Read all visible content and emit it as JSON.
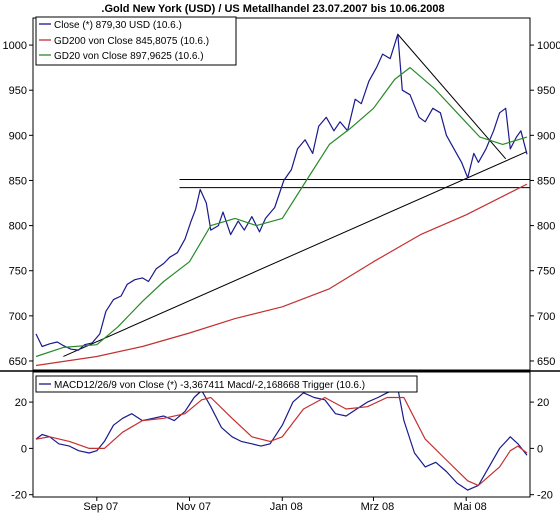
{
  "chart_data": [
    {
      "type": "line",
      "title": ".Gold New York (USD) / US Metallhandel 23.07.2007 bis 10.06.2008",
      "ylim": [
        640,
        1030
      ],
      "y_ticks": [
        650,
        700,
        750,
        800,
        850,
        900,
        950,
        1000
      ],
      "y_tick_labels_left": [
        "650",
        "700",
        "750",
        "800",
        "850",
        "900",
        "950",
        "1000"
      ],
      "y_tick_labels_right": [
        "650",
        "700",
        "750",
        "800",
        "850",
        "900",
        "950",
        "1000"
      ],
      "x_range": [
        "2007-07-23",
        "2008-06-10"
      ],
      "x_tick_labels": [
        "Sep 07",
        "Nov 07",
        "Jan 08",
        "Mrz 08",
        "Mai 08"
      ],
      "x_tick_dates": [
        "2007-09-01",
        "2007-11-01",
        "2008-01-01",
        "2008-03-01",
        "2008-05-01"
      ],
      "grid": false,
      "legend_placement": "top-left",
      "series": [
        {
          "name": "Close (*) 879,30 USD (10.6.)",
          "color": "#1a1a8c",
          "points": [
            [
              "2007-07-23",
              680
            ],
            [
              "2007-07-27",
              666
            ],
            [
              "2007-08-01",
              669
            ],
            [
              "2007-08-06",
              671
            ],
            [
              "2007-08-10",
              667
            ],
            [
              "2007-08-15",
              663
            ],
            [
              "2007-08-20",
              662
            ],
            [
              "2007-08-24",
              668
            ],
            [
              "2007-08-29",
              670
            ],
            [
              "2007-09-03",
              680
            ],
            [
              "2007-09-07",
              705
            ],
            [
              "2007-09-12",
              718
            ],
            [
              "2007-09-17",
              722
            ],
            [
              "2007-09-21",
              735
            ],
            [
              "2007-09-26",
              740
            ],
            [
              "2007-10-01",
              742
            ],
            [
              "2007-10-05",
              738
            ],
            [
              "2007-10-10",
              752
            ],
            [
              "2007-10-15",
              758
            ],
            [
              "2007-10-19",
              765
            ],
            [
              "2007-10-24",
              770
            ],
            [
              "2007-10-29",
              785
            ],
            [
              "2007-11-02",
              805
            ],
            [
              "2007-11-05",
              818
            ],
            [
              "2007-11-08",
              840
            ],
            [
              "2007-11-12",
              825
            ],
            [
              "2007-11-15",
              795
            ],
            [
              "2007-11-20",
              800
            ],
            [
              "2007-11-23",
              815
            ],
            [
              "2007-11-28",
              790
            ],
            [
              "2007-12-03",
              805
            ],
            [
              "2007-12-07",
              795
            ],
            [
              "2007-12-12",
              810
            ],
            [
              "2007-12-17",
              793
            ],
            [
              "2007-12-21",
              808
            ],
            [
              "2007-12-27",
              820
            ],
            [
              "2008-01-02",
              850
            ],
            [
              "2008-01-07",
              862
            ],
            [
              "2008-01-11",
              885
            ],
            [
              "2008-01-16",
              895
            ],
            [
              "2008-01-21",
              880
            ],
            [
              "2008-01-25",
              910
            ],
            [
              "2008-01-30",
              920
            ],
            [
              "2008-02-04",
              905
            ],
            [
              "2008-02-08",
              915
            ],
            [
              "2008-02-13",
              905
            ],
            [
              "2008-02-18",
              940
            ],
            [
              "2008-02-22",
              935
            ],
            [
              "2008-02-27",
              960
            ],
            [
              "2008-03-03",
              975
            ],
            [
              "2008-03-07",
              990
            ],
            [
              "2008-03-12",
              985
            ],
            [
              "2008-03-17",
              1012
            ],
            [
              "2008-03-20",
              950
            ],
            [
              "2008-03-25",
              945
            ],
            [
              "2008-03-31",
              920
            ],
            [
              "2008-04-04",
              915
            ],
            [
              "2008-04-09",
              930
            ],
            [
              "2008-04-14",
              925
            ],
            [
              "2008-04-18",
              900
            ],
            [
              "2008-04-23",
              885
            ],
            [
              "2008-04-28",
              870
            ],
            [
              "2008-05-02",
              853
            ],
            [
              "2008-05-06",
              880
            ],
            [
              "2008-05-09",
              870
            ],
            [
              "2008-05-14",
              885
            ],
            [
              "2008-05-19",
              905
            ],
            [
              "2008-05-23",
              925
            ],
            [
              "2008-05-27",
              930
            ],
            [
              "2008-05-30",
              885
            ],
            [
              "2008-06-03",
              898
            ],
            [
              "2008-06-06",
              905
            ],
            [
              "2008-06-10",
              879
            ]
          ]
        },
        {
          "name": "GD200 von Close 845,8075 (10.6.)",
          "color": "#c43030",
          "points": [
            [
              "2007-07-23",
              645
            ],
            [
              "2007-09-01",
              655
            ],
            [
              "2007-10-01",
              666
            ],
            [
              "2007-11-01",
              681
            ],
            [
              "2007-12-01",
              697
            ],
            [
              "2008-01-01",
              710
            ],
            [
              "2008-02-01",
              730
            ],
            [
              "2008-03-01",
              760
            ],
            [
              "2008-04-01",
              790
            ],
            [
              "2008-05-01",
              812
            ],
            [
              "2008-06-10",
              846
            ]
          ]
        },
        {
          "name": "GD20 von Close 897,9625 (10.6.)",
          "color": "#2a8a2a",
          "points": [
            [
              "2007-07-23",
              655
            ],
            [
              "2007-08-10",
              665
            ],
            [
              "2007-09-01",
              668
            ],
            [
              "2007-09-15",
              688
            ],
            [
              "2007-10-01",
              716
            ],
            [
              "2007-10-15",
              738
            ],
            [
              "2007-11-01",
              760
            ],
            [
              "2007-11-15",
              800
            ],
            [
              "2007-12-01",
              808
            ],
            [
              "2007-12-15",
              800
            ],
            [
              "2008-01-01",
              808
            ],
            [
              "2008-01-15",
              845
            ],
            [
              "2008-02-01",
              890
            ],
            [
              "2008-02-15",
              908
            ],
            [
              "2008-03-01",
              930
            ],
            [
              "2008-03-15",
              962
            ],
            [
              "2008-03-25",
              975
            ],
            [
              "2008-04-10",
              952
            ],
            [
              "2008-04-25",
              925
            ],
            [
              "2008-05-10",
              898
            ],
            [
              "2008-05-25",
              890
            ],
            [
              "2008-06-10",
              898
            ]
          ]
        }
      ],
      "annotations": [
        {
          "type": "trendline",
          "points": [
            [
              "2007-08-10",
              655
            ],
            [
              "2008-06-10",
              882
            ]
          ]
        },
        {
          "type": "trendline",
          "points": [
            [
              "2008-03-17",
              1012
            ],
            [
              "2008-05-27",
              874
            ]
          ]
        },
        {
          "type": "horizontal_line",
          "from": "2007-11-01",
          "to": "2008-06-10",
          "value": 851
        },
        {
          "type": "horizontal_line",
          "from": "2007-11-01",
          "to": "2008-06-10",
          "value": 842
        }
      ]
    },
    {
      "type": "line",
      "ylim": [
        -21,
        33
      ],
      "y_ticks": [
        -20,
        0,
        20
      ],
      "y_tick_labels_left": [
        "-20",
        "0",
        "20"
      ],
      "y_tick_labels_right": [
        "-20",
        "0",
        "20"
      ],
      "x_range": [
        "2007-07-23",
        "2008-06-10"
      ],
      "grid": false,
      "legend_placement": "top-left",
      "legend_text": "MACD12/26/9 von Close (*) -3,367411 Macd/-2,168668 Trigger (10.6.)",
      "series": [
        {
          "color": "#1a1a8c",
          "points": [
            [
              "2007-07-23",
              4
            ],
            [
              "2007-07-27",
              6
            ],
            [
              "2007-08-01",
              5
            ],
            [
              "2007-08-07",
              2
            ],
            [
              "2007-08-14",
              1
            ],
            [
              "2007-08-20",
              -1
            ],
            [
              "2007-08-27",
              -2
            ],
            [
              "2007-09-01",
              -1
            ],
            [
              "2007-09-06",
              3
            ],
            [
              "2007-09-12",
              10
            ],
            [
              "2007-09-18",
              13
            ],
            [
              "2007-09-24",
              15
            ],
            [
              "2007-10-01",
              12
            ],
            [
              "2007-10-08",
              13
            ],
            [
              "2007-10-15",
              14
            ],
            [
              "2007-10-22",
              12
            ],
            [
              "2007-10-29",
              16
            ],
            [
              "2007-11-04",
              22
            ],
            [
              "2007-11-09",
              25
            ],
            [
              "2007-11-15",
              18
            ],
            [
              "2007-11-22",
              9
            ],
            [
              "2007-11-29",
              5
            ],
            [
              "2007-12-05",
              3
            ],
            [
              "2007-12-12",
              2
            ],
            [
              "2007-12-18",
              1
            ],
            [
              "2007-12-24",
              2
            ],
            [
              "2008-01-01",
              10
            ],
            [
              "2008-01-08",
              20
            ],
            [
              "2008-01-15",
              24
            ],
            [
              "2008-01-22",
              22
            ],
            [
              "2008-01-29",
              21
            ],
            [
              "2008-02-05",
              15
            ],
            [
              "2008-02-12",
              14
            ],
            [
              "2008-02-19",
              17
            ],
            [
              "2008-02-26",
              20
            ],
            [
              "2008-03-04",
              22
            ],
            [
              "2008-03-10",
              24
            ],
            [
              "2008-03-17",
              26
            ],
            [
              "2008-03-21",
              12
            ],
            [
              "2008-03-28",
              -2
            ],
            [
              "2008-04-04",
              -8
            ],
            [
              "2008-04-11",
              -6
            ],
            [
              "2008-04-18",
              -10
            ],
            [
              "2008-04-25",
              -15
            ],
            [
              "2008-05-02",
              -18
            ],
            [
              "2008-05-09",
              -16
            ],
            [
              "2008-05-16",
              -8
            ],
            [
              "2008-05-23",
              0
            ],
            [
              "2008-05-30",
              5
            ],
            [
              "2008-06-04",
              2
            ],
            [
              "2008-06-10",
              -3
            ]
          ]
        },
        {
          "color": "#c43030",
          "points": [
            [
              "2007-07-23",
              4
            ],
            [
              "2007-08-01",
              5
            ],
            [
              "2007-08-14",
              3
            ],
            [
              "2007-08-27",
              0
            ],
            [
              "2007-09-06",
              0
            ],
            [
              "2007-09-18",
              7
            ],
            [
              "2007-10-01",
              12
            ],
            [
              "2007-10-15",
              13
            ],
            [
              "2007-10-29",
              15
            ],
            [
              "2007-11-09",
              21
            ],
            [
              "2007-11-15",
              22
            ],
            [
              "2007-11-29",
              13
            ],
            [
              "2007-12-12",
              5
            ],
            [
              "2007-12-24",
              3
            ],
            [
              "2008-01-01",
              5
            ],
            [
              "2008-01-15",
              17
            ],
            [
              "2008-01-29",
              22
            ],
            [
              "2008-02-12",
              17
            ],
            [
              "2008-02-26",
              18
            ],
            [
              "2008-03-10",
              22
            ],
            [
              "2008-03-21",
              22
            ],
            [
              "2008-03-28",
              13
            ],
            [
              "2008-04-04",
              4
            ],
            [
              "2008-04-18",
              -5
            ],
            [
              "2008-05-02",
              -14
            ],
            [
              "2008-05-09",
              -16
            ],
            [
              "2008-05-23",
              -8
            ],
            [
              "2008-05-30",
              -1
            ],
            [
              "2008-06-04",
              1
            ],
            [
              "2008-06-10",
              -2
            ]
          ]
        }
      ]
    }
  ]
}
